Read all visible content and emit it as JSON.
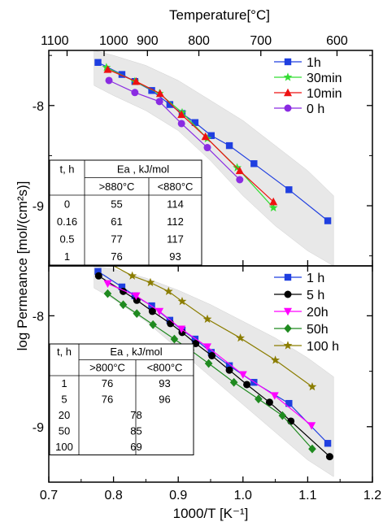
{
  "chart_data": [
    {
      "type": "line",
      "panel": "top",
      "xlabel": "1000/T [K⁻¹]",
      "top_axis_label": "Temperature[°C]",
      "top_axis_ticks": [
        {
          "label": "1100",
          "value": 1100
        },
        {
          "label": "1000",
          "value": 1000
        },
        {
          "label": "900",
          "value": 900
        },
        {
          "label": "800",
          "value": 800
        },
        {
          "label": "700",
          "value": 700
        },
        {
          "label": "600",
          "value": 600
        }
      ],
      "ylabel": "log Permeance [mol/(cm²s)]",
      "xlim": [
        0.7,
        1.2
      ],
      "ylim": [
        -9.6,
        -7.45
      ],
      "yticks": [
        -8,
        -9
      ],
      "ytick_labels": [
        "-8",
        "-9"
      ],
      "series": [
        {
          "name": "1h",
          "color": "#1f3fe0",
          "marker": "square",
          "x": [
            0.776,
            0.813,
            0.833,
            0.859,
            0.887,
            0.906,
            0.926,
            0.951,
            0.979,
            1.017,
            1.071,
            1.131
          ],
          "y": [
            -7.57,
            -7.69,
            -7.76,
            -7.85,
            -7.99,
            -8.08,
            -8.17,
            -8.3,
            -8.4,
            -8.58,
            -8.84,
            -9.15
          ]
        },
        {
          "name": "30min",
          "color": "#33dd33",
          "marker": "star",
          "x": [
            0.789,
            0.833,
            0.871,
            0.906,
            0.945,
            0.991,
            1.047
          ],
          "y": [
            -7.62,
            -7.76,
            -7.88,
            -8.07,
            -8.33,
            -8.62,
            -9.02
          ]
        },
        {
          "name": "10min",
          "color": "#ee1111",
          "marker": "triangle",
          "x": [
            0.791,
            0.835,
            0.872,
            0.905,
            0.942,
            0.995,
            1.047
          ],
          "y": [
            -7.64,
            -7.76,
            -7.88,
            -8.09,
            -8.31,
            -8.65,
            -8.96
          ]
        },
        {
          "name": "0 h",
          "color": "#8a2be2",
          "marker": "circle",
          "x": [
            0.793,
            0.833,
            0.871,
            0.905,
            0.945,
            0.995
          ],
          "y": [
            -7.75,
            -7.87,
            -7.96,
            -8.18,
            -8.42,
            -8.74
          ]
        }
      ],
      "band": {
        "x": [
          0.77,
          0.8,
          0.85,
          0.9,
          0.95,
          1.0,
          1.05,
          1.1,
          1.14
        ],
        "upper": [
          -7.45,
          -7.5,
          -7.6,
          -7.75,
          -7.95,
          -8.15,
          -8.4,
          -8.65,
          -8.9
        ],
        "lower": [
          -7.8,
          -7.9,
          -8.05,
          -8.25,
          -8.55,
          -8.9,
          -9.2,
          -9.45,
          -9.6
        ]
      },
      "legend_placement": "top-right",
      "table": {
        "col1_header": "t, h",
        "header": "Ea , kJ/mol",
        "subheaders": [
          ">880°C",
          "<880°C"
        ],
        "rows": [
          [
            "0",
            "55",
            "114"
          ],
          [
            "0.16",
            "61",
            "112"
          ],
          [
            "0.5",
            "77",
            "117"
          ],
          [
            "1",
            "76",
            "93"
          ]
        ]
      }
    },
    {
      "type": "line",
      "panel": "bottom",
      "xlabel": "1000/T [K⁻¹]",
      "ylabel": "log Permeance [mol/(cm²s)]",
      "xlim": [
        0.7,
        1.2
      ],
      "xticks": [
        0.7,
        0.8,
        0.9,
        1.0,
        1.1,
        1.2
      ],
      "xtick_labels": [
        "0.7",
        "0.8",
        "0.9",
        "1.0",
        "1.1",
        "1.2"
      ],
      "ylim": [
        -9.5,
        -7.55
      ],
      "yticks": [
        -8,
        -9
      ],
      "ytick_labels": [
        "-8",
        "-9"
      ],
      "series": [
        {
          "name": "1 h",
          "color": "#1f3fe0",
          "marker": "square",
          "x": [
            0.776,
            0.813,
            0.833,
            0.859,
            0.887,
            0.906,
            0.926,
            0.951,
            0.979,
            1.017,
            1.071,
            1.131
          ],
          "y": [
            -7.6,
            -7.74,
            -7.82,
            -7.91,
            -8.04,
            -8.13,
            -8.21,
            -8.33,
            -8.45,
            -8.6,
            -8.79,
            -9.15
          ]
        },
        {
          "name": "5 h",
          "color": "#000000",
          "marker": "circle",
          "x": [
            0.777,
            0.815,
            0.836,
            0.86,
            0.888,
            0.906,
            0.927,
            0.952,
            0.979,
            1.006,
            1.041,
            1.074,
            1.134
          ],
          "y": [
            -7.64,
            -7.78,
            -7.86,
            -7.96,
            -8.07,
            -8.15,
            -8.25,
            -8.36,
            -8.49,
            -8.62,
            -8.78,
            -8.95,
            -9.27
          ]
        },
        {
          "name": "20h",
          "color": "#ff00ff",
          "marker": "triangle-down",
          "x": [
            0.791,
            0.835,
            0.871,
            0.905,
            0.945,
            1.0,
            1.049,
            1.106
          ],
          "y": [
            -7.71,
            -7.82,
            -7.96,
            -8.12,
            -8.28,
            -8.53,
            -8.72,
            -8.99
          ]
        },
        {
          "name": "50h",
          "color": "#1f8a1f",
          "marker": "diamond",
          "x": [
            0.791,
            0.815,
            0.836,
            0.861,
            0.894,
            0.919,
            0.947,
            0.986,
            1.024,
            1.061,
            1.107
          ],
          "y": [
            -7.8,
            -7.9,
            -7.98,
            -8.08,
            -8.21,
            -8.31,
            -8.43,
            -8.6,
            -8.75,
            -8.9,
            -9.2
          ]
        },
        {
          "name": "100 h",
          "color": "#8b7d00",
          "marker": "star",
          "x": [
            0.791,
            0.829,
            0.857,
            0.885,
            0.906,
            0.945,
            0.996,
            1.05,
            1.107
          ],
          "y": [
            -7.52,
            -7.64,
            -7.7,
            -7.78,
            -7.87,
            -8.03,
            -8.2,
            -8.4,
            -8.64
          ]
        }
      ],
      "band": {
        "x": [
          0.77,
          0.8,
          0.85,
          0.9,
          0.95,
          1.0,
          1.05,
          1.1,
          1.14
        ],
        "upper": [
          -7.55,
          -7.58,
          -7.66,
          -7.77,
          -7.9,
          -8.05,
          -8.2,
          -8.38,
          -8.55
        ],
        "lower": [
          -7.75,
          -7.85,
          -8.05,
          -8.3,
          -8.55,
          -8.8,
          -9.05,
          -9.3,
          -9.45
        ]
      },
      "legend_placement": "top-right",
      "table": {
        "col1_header": "t, h",
        "header": "Ea , kJ/mol",
        "subheaders": [
          ">800°C",
          "<800°C"
        ],
        "rows": [
          [
            "1",
            "76",
            "93"
          ],
          [
            "5",
            "76",
            "96"
          ],
          [
            "20",
            "78",
            ""
          ],
          [
            "50",
            "85",
            ""
          ],
          [
            "100",
            "69",
            ""
          ]
        ]
      }
    }
  ]
}
